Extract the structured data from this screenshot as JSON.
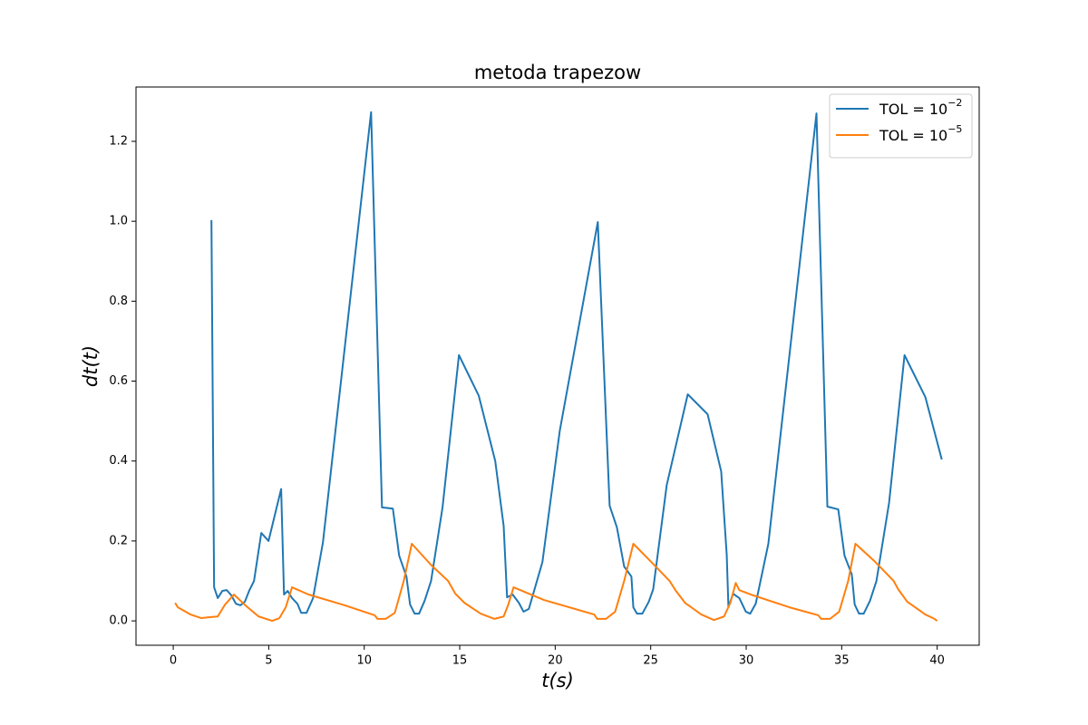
{
  "chart_data": {
    "type": "line",
    "title": "metoda trapezow",
    "x_label": "t(s)",
    "y_label": "dt(t)",
    "xlim": [
      -1.95,
      42.2
    ],
    "ylim": [
      -0.061,
      1.336
    ],
    "xticks": [
      0,
      5,
      10,
      15,
      20,
      25,
      30,
      35,
      40
    ],
    "yticks": [
      {
        "value": 0,
        "label": "0.0"
      },
      0.2,
      0.4,
      0.6,
      0.8,
      {
        "value": 1,
        "label": "1.0"
      },
      1.2
    ],
    "grid": false,
    "legend": "upper right",
    "series": [
      {
        "name": "TOL = 10",
        "name_superscript": "−2",
        "color": "#1f77b4",
        "x": [
          2.0,
          2.14,
          2.33,
          2.57,
          2.8,
          3.04,
          3.28,
          3.52,
          3.75,
          3.99,
          4.23,
          4.61,
          4.99,
          5.65,
          5.8,
          5.99,
          6.22,
          6.5,
          6.7,
          6.98,
          7.32,
          7.84,
          10.36,
          10.93,
          11.5,
          11.83,
          12.21,
          12.4,
          12.64,
          12.87,
          13.16,
          13.5,
          14.1,
          14.96,
          16.0,
          16.86,
          17.3,
          17.48,
          17.77,
          18.1,
          18.34,
          18.62,
          19.33,
          20.24,
          22.23,
          22.85,
          23.23,
          23.61,
          23.99,
          24.09,
          24.28,
          24.56,
          24.9,
          25.13,
          25.84,
          26.94,
          27.98,
          28.69,
          28.98,
          29.07,
          29.31,
          29.64,
          29.98,
          30.21,
          30.5,
          31.16,
          33.68,
          34.25,
          34.82,
          35.15,
          35.53,
          35.68,
          35.91,
          36.15,
          36.48,
          36.82,
          37.48,
          38.29,
          39.38,
          40.24
        ],
        "values": [
          1.003,
          0.084,
          0.057,
          0.075,
          0.077,
          0.064,
          0.043,
          0.039,
          0.048,
          0.077,
          0.1,
          0.22,
          0.2,
          0.33,
          0.066,
          0.075,
          0.057,
          0.043,
          0.02,
          0.02,
          0.057,
          0.197,
          1.273,
          0.284,
          0.281,
          0.163,
          0.111,
          0.041,
          0.018,
          0.018,
          0.05,
          0.1,
          0.284,
          0.665,
          0.563,
          0.4,
          0.238,
          0.059,
          0.066,
          0.045,
          0.023,
          0.03,
          0.147,
          0.476,
          0.998,
          0.288,
          0.234,
          0.136,
          0.111,
          0.034,
          0.018,
          0.018,
          0.048,
          0.079,
          0.34,
          0.567,
          0.517,
          0.374,
          0.166,
          0.034,
          0.068,
          0.057,
          0.023,
          0.018,
          0.043,
          0.193,
          1.27,
          0.286,
          0.279,
          0.163,
          0.116,
          0.041,
          0.018,
          0.018,
          0.05,
          0.1,
          0.295,
          0.665,
          0.56,
          0.404
        ]
      },
      {
        "name": "TOL = 10",
        "name_superscript": "−5",
        "color": "#ff7f0e",
        "x": [
          0.1,
          0.24,
          0.9,
          1.47,
          1.85,
          2.33,
          2.7,
          3.18,
          3.75,
          4.47,
          5.18,
          5.56,
          5.89,
          6.22,
          7.08,
          8.98,
          10.55,
          10.69,
          11.12,
          11.6,
          12.07,
          12.49,
          13.5,
          14.39,
          14.77,
          15.25,
          16.1,
          16.82,
          17.3,
          17.53,
          17.82,
          19.43,
          22.04,
          22.2,
          22.66,
          23.14,
          23.61,
          24.09,
          25.04,
          25.99,
          26.32,
          26.8,
          27.65,
          28.31,
          28.84,
          29.17,
          29.45,
          29.64,
          30.36,
          32.26,
          33.78,
          33.92,
          34.39,
          34.87,
          35.34,
          35.72,
          36.77,
          37.72,
          37.96,
          38.43,
          39.38,
          39.86,
          40.0
        ],
        "values": [
          0.045,
          0.034,
          0.016,
          0.007,
          0.009,
          0.011,
          0.04,
          0.066,
          0.04,
          0.011,
          0.0,
          0.007,
          0.034,
          0.084,
          0.066,
          0.039,
          0.014,
          0.005,
          0.005,
          0.02,
          0.1,
          0.193,
          0.14,
          0.1,
          0.068,
          0.045,
          0.018,
          0.005,
          0.011,
          0.039,
          0.084,
          0.052,
          0.016,
          0.005,
          0.005,
          0.023,
          0.1,
          0.193,
          0.147,
          0.1,
          0.075,
          0.045,
          0.016,
          0.002,
          0.011,
          0.045,
          0.095,
          0.077,
          0.064,
          0.034,
          0.014,
          0.005,
          0.005,
          0.023,
          0.1,
          0.193,
          0.147,
          0.1,
          0.079,
          0.048,
          0.016,
          0.005,
          0.0
        ]
      }
    ]
  }
}
